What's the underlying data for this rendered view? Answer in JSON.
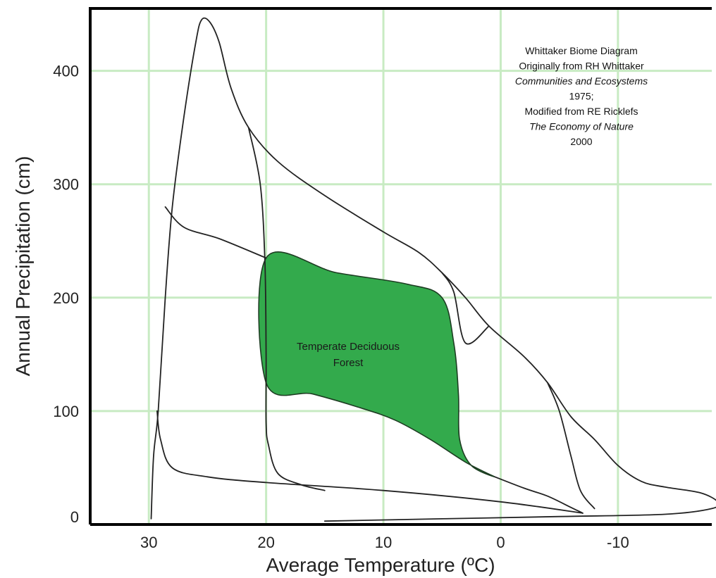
{
  "chart_data": {
    "type": "area",
    "xlabel": "Average Temperature (ºC)",
    "ylabel": "Annual Precipitation (cm)",
    "x_ticks": [
      30,
      20,
      10,
      0,
      -10
    ],
    "y_ticks": [
      0,
      100,
      200,
      300,
      400
    ],
    "xlim": [
      35,
      -18
    ],
    "ylim": [
      0,
      455
    ],
    "x_reversed": true,
    "grid": true,
    "grid_color": "#c8ebc3",
    "frame_color": "#000000",
    "highlight_color": "#33aa4c",
    "annotation_lines": [
      {
        "text": "Whittaker Biome Diagram",
        "italic": false
      },
      {
        "text": "Originally from RH Whittaker",
        "italic": false
      },
      {
        "text": "Communities and Ecosystems",
        "italic": true
      },
      {
        "text": "1975;",
        "italic": false
      },
      {
        "text": "Modified from RE Ricklefs",
        "italic": false
      },
      {
        "text": "The Economy of Nature",
        "italic": true
      },
      {
        "text": "2000",
        "italic": false
      }
    ],
    "highlighted_region": {
      "label_lines": [
        "Temperate Deciduous",
        "Forest"
      ],
      "points": [
        [
          20,
          235
        ],
        [
          14,
          222
        ],
        [
          8,
          212
        ],
        [
          5,
          200
        ],
        [
          4,
          160
        ],
        [
          3.6,
          115
        ],
        [
          3.5,
          75
        ],
        [
          2.5,
          52
        ],
        [
          0.5,
          42
        ],
        [
          3,
          55
        ],
        [
          6,
          75
        ],
        [
          9,
          92
        ],
        [
          12,
          103
        ],
        [
          16,
          115
        ],
        [
          20,
          125
        ]
      ]
    },
    "boundaries": [
      {
        "name": "",
        "points": [
          [
            29.8,
            5
          ],
          [
            29.6,
            60
          ],
          [
            29.2,
            100
          ],
          [
            28.6,
            200
          ],
          [
            28,
            280
          ],
          [
            27,
            360
          ],
          [
            26,
            425
          ],
          [
            25.5,
            445
          ],
          [
            24.8,
            443
          ],
          [
            24,
            425
          ],
          [
            23,
            385
          ],
          [
            21.5,
            350
          ],
          [
            19,
            320
          ],
          [
            15,
            290
          ],
          [
            10,
            258
          ],
          [
            7,
            240
          ],
          [
            5,
            222
          ],
          [
            3,
            200
          ],
          [
            1,
            175
          ],
          [
            -2,
            148
          ],
          [
            -4,
            125
          ],
          [
            -6,
            95
          ],
          [
            -8,
            75
          ],
          [
            -10,
            52
          ],
          [
            -12,
            38
          ],
          [
            -14,
            33
          ],
          [
            -17,
            28
          ],
          [
            -18.5,
            20
          ],
          [
            -18,
            14
          ],
          [
            -14,
            9
          ],
          [
            -5,
            7
          ],
          [
            5,
            5
          ],
          [
            15,
            3
          ]
        ]
      },
      {
        "name": "",
        "points": [
          [
            29.3,
            100
          ],
          [
            29,
            75
          ],
          [
            28,
            50
          ],
          [
            25,
            42
          ],
          [
            20,
            37
          ],
          [
            10,
            30
          ],
          [
            0,
            20
          ],
          [
            -7,
            10
          ]
        ]
      },
      {
        "name": "",
        "points": [
          [
            21.5,
            350
          ],
          [
            20.5,
            300
          ],
          [
            20.1,
            230
          ],
          [
            20,
            150
          ],
          [
            20,
            90
          ],
          [
            19.8,
            70
          ],
          [
            19,
            45
          ],
          [
            17,
            35
          ],
          [
            15,
            30
          ]
        ]
      },
      {
        "name": "",
        "points": [
          [
            28.6,
            280
          ],
          [
            27,
            262
          ],
          [
            24,
            252
          ],
          [
            20,
            235
          ]
        ]
      },
      {
        "name": "",
        "points": [
          [
            0.5,
            42
          ],
          [
            -2,
            32
          ],
          [
            -4,
            25
          ],
          [
            -6,
            15
          ],
          [
            -7,
            10
          ]
        ]
      },
      {
        "name": "",
        "points": [
          [
            5,
            222
          ],
          [
            4,
            205
          ],
          [
            3,
            160
          ],
          [
            1,
            175
          ]
        ]
      },
      {
        "name": "",
        "points": [
          [
            -4,
            125
          ],
          [
            -5,
            100
          ],
          [
            -6,
            60
          ],
          [
            -6.8,
            30
          ],
          [
            -8,
            14
          ]
        ]
      }
    ]
  }
}
